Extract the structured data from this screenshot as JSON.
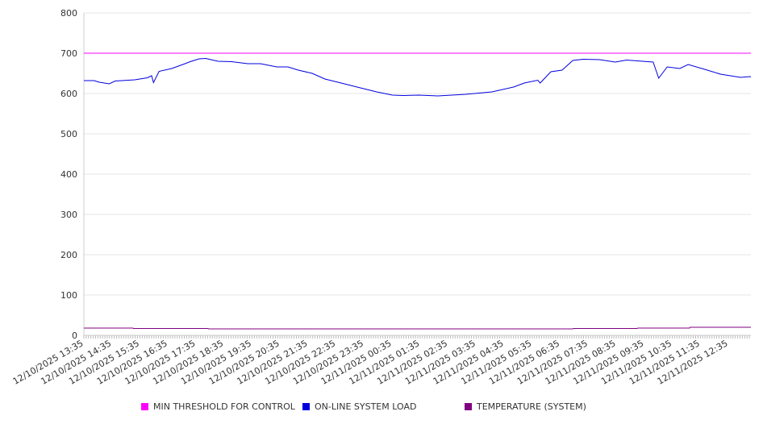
{
  "chart_data": {
    "type": "line",
    "title": "",
    "xlabel": "",
    "ylabel": "",
    "ylim": [
      0,
      800
    ],
    "yticks": [
      0,
      100,
      200,
      300,
      400,
      500,
      600,
      700,
      800
    ],
    "x_unit": "minutes since 12/10/2025 13:35",
    "xlim": [
      0,
      1440
    ],
    "xtick_labels": [
      "12/10/2025 13:35",
      "12/10/2025 14:35",
      "12/10/2025 15:35",
      "12/10/2025 16:35",
      "12/10/2025 17:35",
      "12/10/2025 18:35",
      "12/10/2025 19:35",
      "12/10/2025 20:35",
      "12/10/2025 21:35",
      "12/10/2025 22:35",
      "12/10/2025 23:35",
      "12/11/2025 00:35",
      "12/11/2025 01:35",
      "12/11/2025 02:35",
      "12/11/2025 03:35",
      "12/11/2025 04:35",
      "12/11/2025 05:35",
      "12/11/2025 06:35",
      "12/11/2025 07:35",
      "12/11/2025 08:35",
      "12/11/2025 09:35",
      "12/11/2025 10:35",
      "12/11/2025 11:35",
      "12/11/2025 12:35"
    ],
    "grid": true,
    "legend_position": "bottom",
    "series": [
      {
        "name": "MIN THRESHOLD FOR CONTROL",
        "color": "#ff00ff",
        "x": [
          0,
          1440
        ],
        "y": [
          700,
          700
        ]
      },
      {
        "name": "ON-LINE SYSTEM LOAD",
        "color": "#0000dd",
        "x": [
          0,
          22,
          33,
          54,
          67,
          109,
          136,
          145,
          149,
          161,
          188,
          212,
          230,
          247,
          261,
          287,
          316,
          351,
          378,
          413,
          437,
          459,
          489,
          516,
          551,
          592,
          627,
          661,
          684,
          718,
          758,
          817,
          874,
          920,
          943,
          972,
          977,
          1000,
          1024,
          1047,
          1069,
          1104,
          1138,
          1162,
          1219,
          1231,
          1249,
          1276,
          1294,
          1335,
          1363,
          1406,
          1427,
          1440
        ],
        "y": [
          632,
          632,
          628,
          624,
          631,
          634,
          639,
          644,
          627,
          655,
          662,
          672,
          680,
          686,
          687,
          680,
          679,
          674,
          674,
          666,
          666,
          658,
          650,
          636,
          626,
          614,
          604,
          596,
          595,
          596,
          594,
          598,
          604,
          616,
          626,
          633,
          626,
          654,
          658,
          682,
          685,
          684,
          678,
          683,
          678,
          638,
          666,
          662,
          672,
          658,
          648,
          640,
          642,
          641
        ]
      },
      {
        "name": "TEMPERATURE (SYSTEM)",
        "color": "#800080",
        "x": [
          0,
          105,
          106,
          266,
          267,
          1047,
          1048,
          1185,
          1186,
          1297,
          1298,
          1440
        ],
        "y": [
          18,
          18,
          17,
          17,
          16,
          16,
          17,
          17,
          18,
          18,
          20,
          20
        ]
      }
    ]
  }
}
